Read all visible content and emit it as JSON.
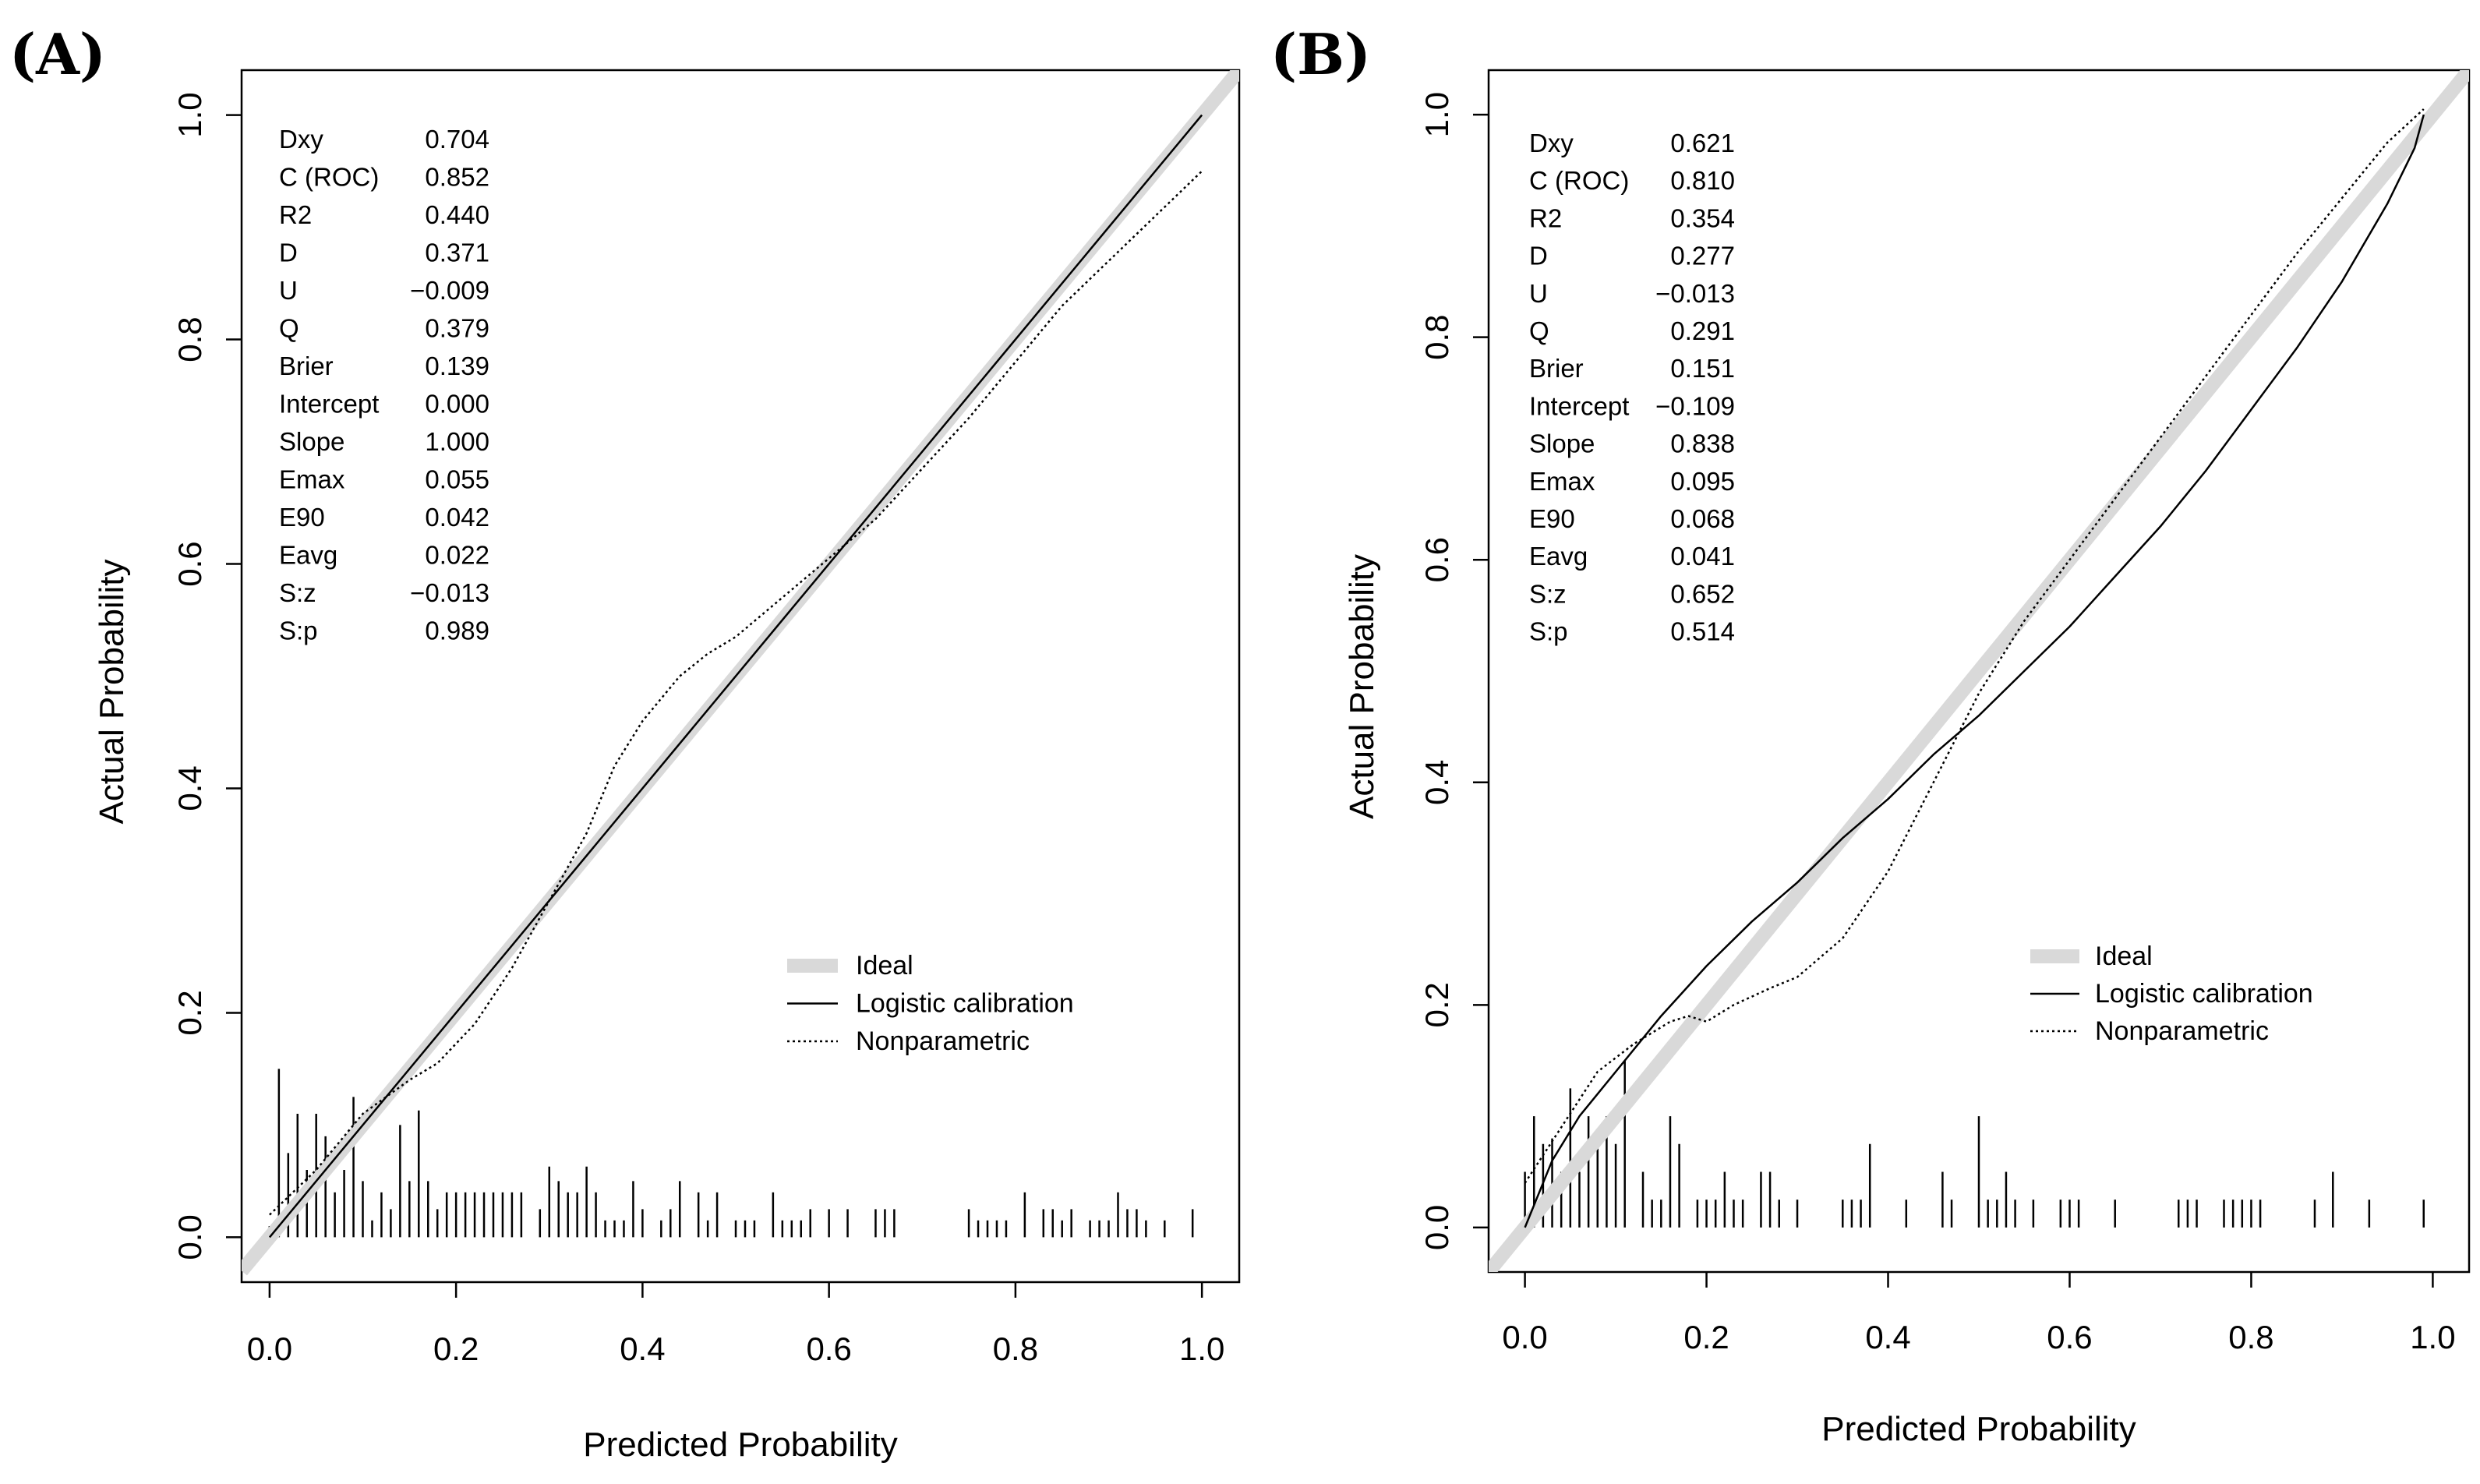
{
  "chart_data": [
    {
      "panel": "(A)",
      "type": "line",
      "xlabel": "Predicted Probability",
      "ylabel": "Actual Probability",
      "xlim": [
        -0.03,
        1.04
      ],
      "ylim": [
        -0.04,
        1.04
      ],
      "xticks": [
        0.0,
        0.2,
        0.4,
        0.6,
        0.8,
        1.0
      ],
      "yticks": [
        0.0,
        0.2,
        0.4,
        0.6,
        0.8,
        1.0
      ],
      "tick_labels_x": [
        "0.0",
        "0.2",
        "0.4",
        "0.6",
        "0.8",
        "1.0"
      ],
      "tick_labels_y": [
        "0.0",
        "0.2",
        "0.4",
        "0.6",
        "0.8",
        "1.0"
      ],
      "stats": [
        {
          "name": "Dxy",
          "value": "0.704"
        },
        {
          "name": "C (ROC)",
          "value": "0.852"
        },
        {
          "name": "R2",
          "value": "0.440"
        },
        {
          "name": "D",
          "value": "0.371"
        },
        {
          "name": "U",
          "value": "−0.009"
        },
        {
          "name": "Q",
          "value": "0.379"
        },
        {
          "name": "Brier",
          "value": "0.139"
        },
        {
          "name": "Intercept",
          "value": "0.000"
        },
        {
          "name": "Slope",
          "value": "1.000"
        },
        {
          "name": "Emax",
          "value": "0.055"
        },
        {
          "name": "E90",
          "value": "0.042"
        },
        {
          "name": "Eavg",
          "value": "0.022"
        },
        {
          "name": "S:z",
          "value": "−0.013"
        },
        {
          "name": "S:p",
          "value": "0.989"
        }
      ],
      "legend": [
        "Ideal",
        "Logistic calibration",
        "Nonparametric"
      ],
      "legend_position": "bottom-right",
      "series": [
        {
          "name": "Ideal",
          "x": [
            -0.03,
            1.04
          ],
          "y": [
            -0.03,
            1.04
          ]
        },
        {
          "name": "Logistic calibration",
          "x": [
            0.0,
            1.0
          ],
          "y": [
            0.0,
            1.0
          ]
        },
        {
          "name": "Nonparametric",
          "x": [
            0.0,
            0.05,
            0.1,
            0.15,
            0.18,
            0.22,
            0.26,
            0.3,
            0.34,
            0.37,
            0.4,
            0.44,
            0.47,
            0.5,
            0.55,
            0.6,
            0.65,
            0.7,
            0.75,
            0.8,
            0.85,
            0.9,
            0.95,
            1.0
          ],
          "y": [
            0.02,
            0.06,
            0.11,
            0.14,
            0.155,
            0.19,
            0.24,
            0.3,
            0.36,
            0.42,
            0.46,
            0.5,
            0.52,
            0.535,
            0.57,
            0.605,
            0.64,
            0.685,
            0.73,
            0.78,
            0.83,
            0.87,
            0.91,
            0.95
          ]
        }
      ],
      "rug": {
        "x": [
          0.0,
          0.01,
          0.02,
          0.03,
          0.04,
          0.05,
          0.06,
          0.07,
          0.08,
          0.09,
          0.1,
          0.11,
          0.12,
          0.13,
          0.14,
          0.15,
          0.16,
          0.17,
          0.18,
          0.19,
          0.2,
          0.21,
          0.22,
          0.23,
          0.24,
          0.25,
          0.26,
          0.27,
          0.29,
          0.3,
          0.31,
          0.32,
          0.33,
          0.34,
          0.35,
          0.36,
          0.37,
          0.38,
          0.39,
          0.4,
          0.42,
          0.43,
          0.44,
          0.46,
          0.47,
          0.48,
          0.5,
          0.51,
          0.52,
          0.54,
          0.55,
          0.56,
          0.57,
          0.58,
          0.6,
          0.62,
          0.65,
          0.66,
          0.67,
          0.75,
          0.76,
          0.77,
          0.78,
          0.79,
          0.81,
          0.83,
          0.84,
          0.85,
          0.86,
          0.88,
          0.89,
          0.9,
          0.91,
          0.92,
          0.93,
          0.94,
          0.96,
          0.99
        ],
        "h": [
          0.01,
          0.15,
          0.075,
          0.11,
          0.06,
          0.11,
          0.09,
          0.04,
          0.06,
          0.125,
          0.05,
          0.015,
          0.04,
          0.025,
          0.1,
          0.05,
          0.113,
          0.05,
          0.025,
          0.04,
          0.04,
          0.04,
          0.04,
          0.04,
          0.04,
          0.04,
          0.04,
          0.04,
          0.025,
          0.063,
          0.05,
          0.04,
          0.04,
          0.063,
          0.04,
          0.015,
          0.015,
          0.015,
          0.05,
          0.025,
          0.015,
          0.025,
          0.05,
          0.04,
          0.015,
          0.04,
          0.015,
          0.015,
          0.015,
          0.04,
          0.015,
          0.015,
          0.015,
          0.025,
          0.025,
          0.025,
          0.025,
          0.025,
          0.025,
          0.025,
          0.015,
          0.015,
          0.015,
          0.015,
          0.04,
          0.025,
          0.025,
          0.015,
          0.025,
          0.015,
          0.015,
          0.015,
          0.04,
          0.025,
          0.025,
          0.015,
          0.015,
          0.025
        ]
      }
    },
    {
      "panel": "(B)",
      "type": "line",
      "xlabel": "Predicted Probability",
      "ylabel": "Actual Probability",
      "xlim": [
        -0.04,
        1.04
      ],
      "ylim": [
        -0.04,
        1.04
      ],
      "xticks": [
        0.0,
        0.2,
        0.4,
        0.6,
        0.8,
        1.0
      ],
      "yticks": [
        0.0,
        0.2,
        0.4,
        0.6,
        0.8,
        1.0
      ],
      "tick_labels_x": [
        "0.0",
        "0.2",
        "0.4",
        "0.6",
        "0.8",
        "1.0"
      ],
      "tick_labels_y": [
        "0.0",
        "0.2",
        "0.4",
        "0.6",
        "0.8",
        "1.0"
      ],
      "stats": [
        {
          "name": "Dxy",
          "value": "0.621"
        },
        {
          "name": "C (ROC)",
          "value": "0.810"
        },
        {
          "name": "R2",
          "value": "0.354"
        },
        {
          "name": "D",
          "value": "0.277"
        },
        {
          "name": "U",
          "value": "−0.013"
        },
        {
          "name": "Q",
          "value": "0.291"
        },
        {
          "name": "Brier",
          "value": "0.151"
        },
        {
          "name": "Intercept",
          "value": "−0.109"
        },
        {
          "name": "Slope",
          "value": "0.838"
        },
        {
          "name": "Emax",
          "value": "0.095"
        },
        {
          "name": "E90",
          "value": "0.068"
        },
        {
          "name": "Eavg",
          "value": "0.041"
        },
        {
          "name": "S:z",
          "value": "0.652"
        },
        {
          "name": "S:p",
          "value": "0.514"
        }
      ],
      "legend": [
        "Ideal",
        "Logistic calibration",
        "Nonparametric"
      ],
      "legend_position": "bottom-right",
      "series": [
        {
          "name": "Ideal",
          "x": [
            -0.04,
            1.04
          ],
          "y": [
            -0.04,
            1.04
          ]
        },
        {
          "name": "Logistic calibration",
          "x": [
            0.0,
            0.03,
            0.06,
            0.1,
            0.15,
            0.2,
            0.25,
            0.3,
            0.35,
            0.4,
            0.45,
            0.5,
            0.55,
            0.6,
            0.65,
            0.7,
            0.75,
            0.8,
            0.85,
            0.9,
            0.95,
            0.98,
            0.99
          ],
          "y": [
            0.0,
            0.06,
            0.1,
            0.14,
            0.19,
            0.235,
            0.275,
            0.31,
            0.35,
            0.385,
            0.425,
            0.46,
            0.5,
            0.54,
            0.585,
            0.63,
            0.68,
            0.735,
            0.79,
            0.85,
            0.92,
            0.97,
            1.0
          ]
        },
        {
          "name": "Nonparametric",
          "x": [
            0.0,
            0.04,
            0.08,
            0.12,
            0.16,
            0.18,
            0.2,
            0.23,
            0.27,
            0.3,
            0.35,
            0.4,
            0.45,
            0.5,
            0.55,
            0.6,
            0.65,
            0.7,
            0.75,
            0.8,
            0.85,
            0.9,
            0.95,
            0.99
          ],
          "y": [
            0.04,
            0.09,
            0.14,
            0.165,
            0.185,
            0.19,
            0.185,
            0.2,
            0.215,
            0.225,
            0.26,
            0.32,
            0.4,
            0.48,
            0.545,
            0.6,
            0.655,
            0.71,
            0.765,
            0.82,
            0.875,
            0.925,
            0.975,
            1.005
          ]
        }
      ],
      "rug": {
        "x": [
          0.0,
          0.01,
          0.02,
          0.03,
          0.04,
          0.05,
          0.06,
          0.07,
          0.08,
          0.09,
          0.1,
          0.11,
          0.13,
          0.14,
          0.15,
          0.16,
          0.17,
          0.19,
          0.2,
          0.21,
          0.22,
          0.23,
          0.24,
          0.26,
          0.27,
          0.28,
          0.3,
          0.35,
          0.36,
          0.37,
          0.38,
          0.42,
          0.46,
          0.47,
          0.5,
          0.51,
          0.52,
          0.53,
          0.54,
          0.56,
          0.59,
          0.6,
          0.61,
          0.65,
          0.72,
          0.73,
          0.74,
          0.77,
          0.78,
          0.79,
          0.8,
          0.81,
          0.87,
          0.89,
          0.93,
          0.99
        ],
        "h": [
          0.05,
          0.1,
          0.075,
          0.08,
          0.05,
          0.125,
          0.05,
          0.1,
          0.075,
          0.1,
          0.075,
          0.15,
          0.05,
          0.025,
          0.025,
          0.1,
          0.075,
          0.025,
          0.025,
          0.025,
          0.05,
          0.025,
          0.025,
          0.05,
          0.05,
          0.025,
          0.025,
          0.025,
          0.025,
          0.025,
          0.075,
          0.025,
          0.05,
          0.025,
          0.1,
          0.025,
          0.025,
          0.05,
          0.025,
          0.025,
          0.025,
          0.025,
          0.025,
          0.025,
          0.025,
          0.025,
          0.025,
          0.025,
          0.025,
          0.025,
          0.025,
          0.025,
          0.025,
          0.05,
          0.025,
          0.025
        ]
      }
    }
  ]
}
